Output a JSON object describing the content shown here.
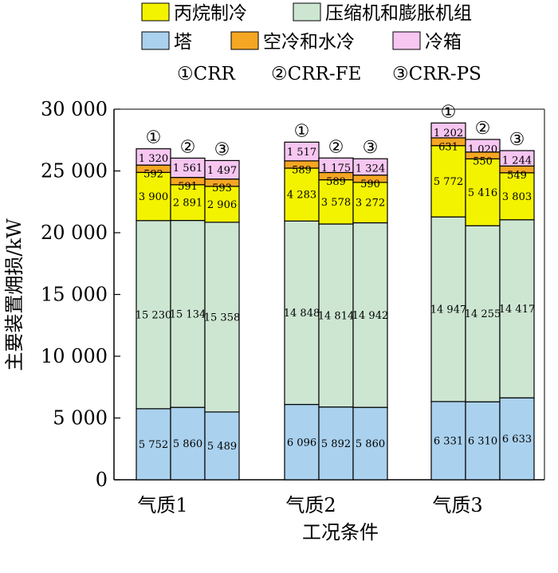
{
  "chart_data": {
    "type": "bar",
    "stacked": true,
    "xlabel": "工况条件",
    "ylabel": "主要装置㶲损/kW",
    "ylim": [
      0,
      30000
    ],
    "yticks": [
      0,
      5000,
      10000,
      15000,
      20000,
      25000,
      30000
    ],
    "ytick_labels": [
      "0",
      "5 000",
      "10 000",
      "15 000",
      "20 000",
      "25 000",
      "30 000"
    ],
    "grid": false,
    "legend_position": "top",
    "groups": [
      "气质1",
      "气质2",
      "气质3"
    ],
    "bar_labels": [
      "①",
      "②",
      "③"
    ],
    "cases_legend": [
      "①CRR",
      "②CRR-FE",
      "③CRR-PS"
    ],
    "series": [
      {
        "name": "塔",
        "color": "#aad1ee",
        "values": [
          5752,
          5860,
          5489,
          6096,
          5892,
          5860,
          6331,
          6310,
          6633
        ],
        "labels": [
          "5 752",
          "5 860",
          "5 489",
          "6 096",
          "5 892",
          "5 860",
          "6 331",
          "6 310",
          "6 633"
        ]
      },
      {
        "name": "压缩机和膨胀机组",
        "color": "#cde6d2",
        "values": [
          15230,
          15134,
          15358,
          14848,
          14814,
          14942,
          14947,
          14255,
          14417
        ],
        "labels": [
          "15 230",
          "15 134",
          "15 358",
          "14 848",
          "14 814",
          "14 942",
          "14 947",
          "14 255",
          "14 417"
        ]
      },
      {
        "name": "丙烷制冷",
        "color": "#f3f300",
        "values": [
          3900,
          2891,
          2906,
          4283,
          3578,
          3272,
          5772,
          5416,
          3803
        ],
        "labels": [
          "3 900",
          "2 891",
          "2 906",
          "4 283",
          "3 578",
          "3 272",
          "5 772",
          "5 416",
          "3 803"
        ]
      },
      {
        "name": "空冷和水冷",
        "color": "#f5a623",
        "values": [
          592,
          591,
          593,
          589,
          589,
          590,
          631,
          550,
          549
        ],
        "labels": [
          "592",
          "591",
          "593",
          "589",
          "589",
          "590",
          "631",
          "550",
          "549"
        ]
      },
      {
        "name": "冷箱",
        "color": "#f7c6f1",
        "values": [
          1320,
          1561,
          1497,
          1517,
          1175,
          1324,
          1202,
          1020,
          1244
        ],
        "labels": [
          "1 320",
          "1 561",
          "1 497",
          "1 517",
          "1 175",
          "1 324",
          "1 202",
          "1 020",
          "1 244"
        ]
      }
    ]
  }
}
